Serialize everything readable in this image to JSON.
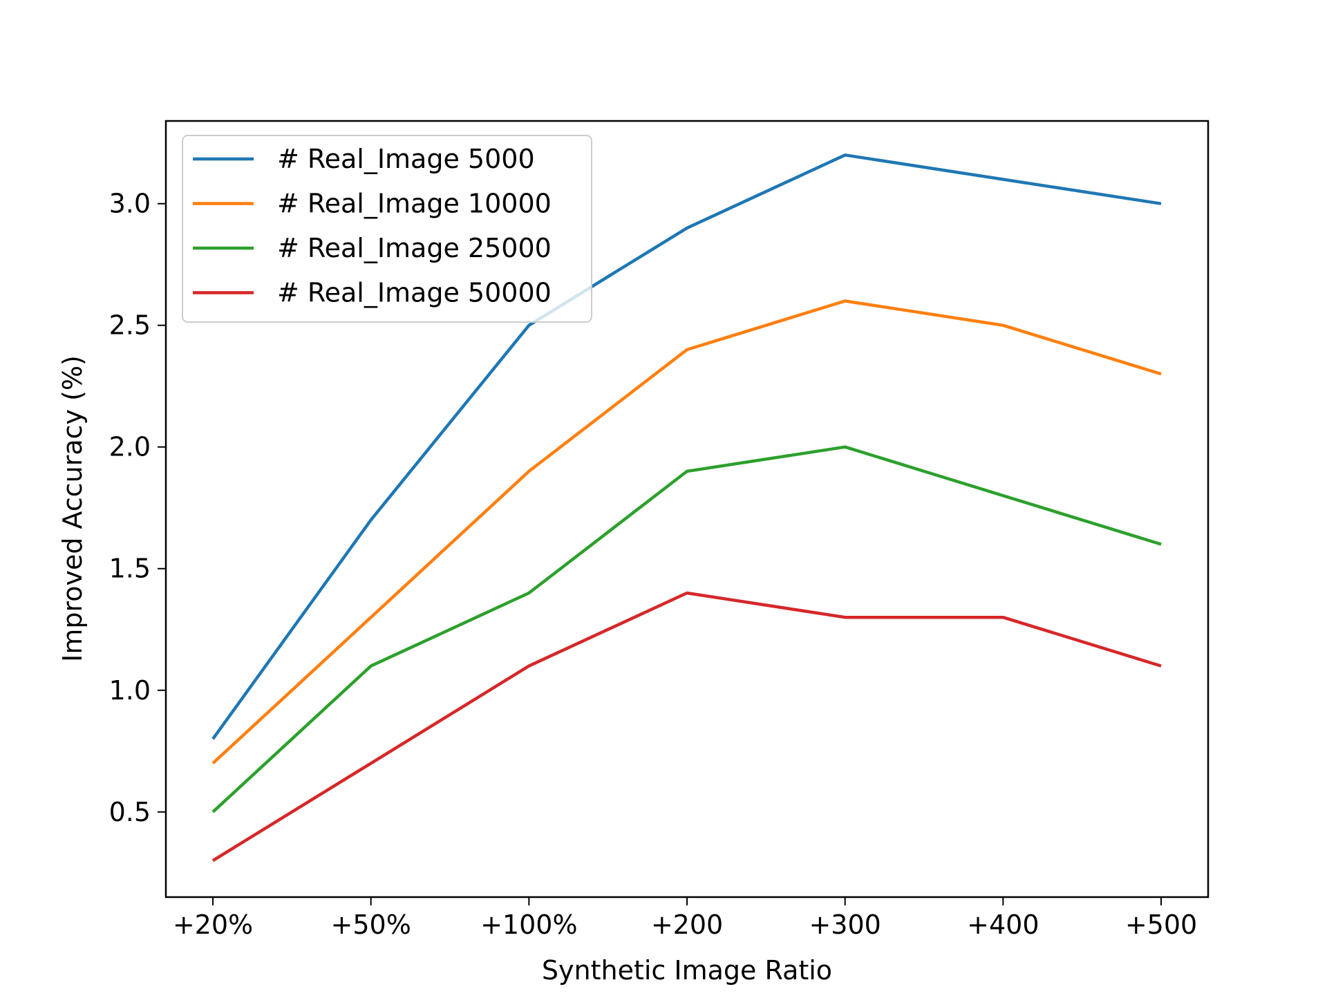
{
  "chart_data": {
    "type": "line",
    "title": "",
    "xlabel": "Synthetic Image Ratio",
    "ylabel": "Improved Accuracy (%)",
    "categories": [
      "+20%",
      "+50%",
      "+100%",
      "+200",
      "+300",
      "+400",
      "+500"
    ],
    "yticks": [
      0.5,
      1.0,
      1.5,
      2.0,
      2.5,
      3.0
    ],
    "ytick_labels": [
      "0.5",
      "1.0",
      "1.5",
      "2.0",
      "2.5",
      "3.0"
    ],
    "ylim": [
      0.15,
      3.34
    ],
    "grid": false,
    "legend_position": "top-left",
    "series": [
      {
        "name": "# Real_Image 5000",
        "color": "#1f77b4",
        "values": [
          0.8,
          1.7,
          2.5,
          2.9,
          3.2,
          3.1,
          3.0
        ]
      },
      {
        "name": "# Real_Image 10000",
        "color": "#ff7f0e",
        "values": [
          0.7,
          1.3,
          1.9,
          2.4,
          2.6,
          2.5,
          2.3
        ]
      },
      {
        "name": "# Real_Image 25000",
        "color": "#2ca02c",
        "values": [
          0.5,
          1.1,
          1.4,
          1.9,
          2.0,
          1.8,
          1.6
        ]
      },
      {
        "name": "# Real_Image 50000",
        "color": "#d62728",
        "values": [
          0.3,
          0.7,
          1.1,
          1.4,
          1.3,
          1.3,
          1.1
        ]
      }
    ]
  }
}
